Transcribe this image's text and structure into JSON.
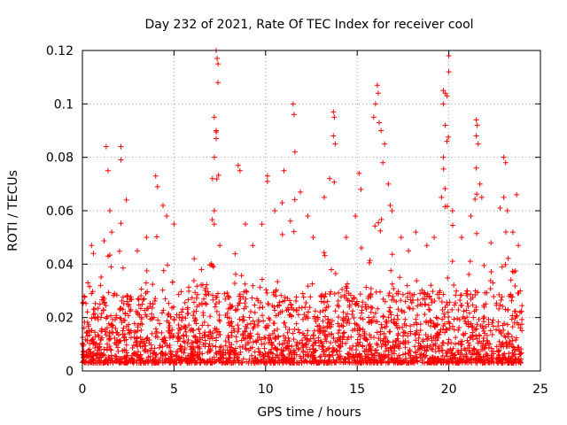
{
  "chart_data": {
    "type": "scatter",
    "title": "Day 232 of 2021, Rate Of TEC Index for receiver cool",
    "xlabel": "GPS time / hours",
    "ylabel": "ROTI / TECUs",
    "xlim": [
      0,
      25
    ],
    "ylim": [
      0,
      0.12
    ],
    "x_ticks": [
      0,
      5,
      10,
      15,
      20,
      25
    ],
    "y_ticks": [
      0,
      0.02,
      0.04,
      0.06,
      0.08,
      0.1,
      0.12
    ],
    "x_tick_labels": [
      "0",
      "5",
      "10",
      "15",
      "20",
      "25"
    ],
    "y_tick_labels": [
      "0",
      "0.02",
      "0.04",
      "0.06",
      "0.08",
      "0.1",
      "0.12"
    ],
    "grid": true,
    "marker": "+",
    "marker_color": "#ff0000",
    "series": [
      {
        "name": "ROTI",
        "baseline_range": [
          0.003,
          0.03
        ],
        "points": [
          [
            0.1,
            0.028
          ],
          [
            0.3,
            0.033
          ],
          [
            0.5,
            0.047
          ],
          [
            0.6,
            0.044
          ],
          [
            1.3,
            0.084
          ],
          [
            1.4,
            0.075
          ],
          [
            1.5,
            0.06
          ],
          [
            1.6,
            0.052
          ],
          [
            2.1,
            0.084
          ],
          [
            2.1,
            0.079
          ],
          [
            2.4,
            0.064
          ],
          [
            3.0,
            0.045
          ],
          [
            3.5,
            0.05
          ],
          [
            4.0,
            0.073
          ],
          [
            4.1,
            0.069
          ],
          [
            4.4,
            0.062
          ],
          [
            4.6,
            0.058
          ],
          [
            5.0,
            0.055
          ],
          [
            6.1,
            0.042
          ],
          [
            6.5,
            0.038
          ],
          [
            7.1,
            0.072
          ],
          [
            7.2,
            0.095
          ],
          [
            7.3,
            0.12
          ],
          [
            7.35,
            0.117
          ],
          [
            7.4,
            0.115
          ],
          [
            7.4,
            0.108
          ],
          [
            7.3,
            0.09
          ],
          [
            7.3,
            0.087
          ],
          [
            7.2,
            0.08
          ],
          [
            7.2,
            0.06
          ],
          [
            7.2,
            0.055
          ],
          [
            7.5,
            0.047
          ],
          [
            8.5,
            0.077
          ],
          [
            8.6,
            0.075
          ],
          [
            8.9,
            0.055
          ],
          [
            9.3,
            0.047
          ],
          [
            9.8,
            0.055
          ],
          [
            10.1,
            0.073
          ],
          [
            10.1,
            0.071
          ],
          [
            10.5,
            0.06
          ],
          [
            10.9,
            0.063
          ],
          [
            11.0,
            0.075
          ],
          [
            11.5,
            0.1
          ],
          [
            11.55,
            0.096
          ],
          [
            11.6,
            0.082
          ],
          [
            11.9,
            0.067
          ],
          [
            12.3,
            0.058
          ],
          [
            12.6,
            0.05
          ],
          [
            13.2,
            0.065
          ],
          [
            13.5,
            0.072
          ],
          [
            13.7,
            0.097
          ],
          [
            13.75,
            0.095
          ],
          [
            13.7,
            0.088
          ],
          [
            13.8,
            0.085
          ],
          [
            14.4,
            0.05
          ],
          [
            14.9,
            0.058
          ],
          [
            15.1,
            0.074
          ],
          [
            15.2,
            0.068
          ],
          [
            15.9,
            0.095
          ],
          [
            16.0,
            0.1
          ],
          [
            16.1,
            0.107
          ],
          [
            16.15,
            0.104
          ],
          [
            16.2,
            0.093
          ],
          [
            16.3,
            0.09
          ],
          [
            16.5,
            0.085
          ],
          [
            16.4,
            0.078
          ],
          [
            16.7,
            0.07
          ],
          [
            16.8,
            0.062
          ],
          [
            16.9,
            0.06
          ],
          [
            17.4,
            0.05
          ],
          [
            17.8,
            0.045
          ],
          [
            18.2,
            0.052
          ],
          [
            18.8,
            0.047
          ],
          [
            19.2,
            0.05
          ],
          [
            19.7,
            0.105
          ],
          [
            19.8,
            0.104
          ],
          [
            19.9,
            0.103
          ],
          [
            19.7,
            0.1
          ],
          [
            20.0,
            0.118
          ],
          [
            20.0,
            0.112
          ],
          [
            19.8,
            0.092
          ],
          [
            19.9,
            0.086
          ],
          [
            19.7,
            0.08
          ],
          [
            19.6,
            0.065
          ],
          [
            20.2,
            0.06
          ],
          [
            20.7,
            0.05
          ],
          [
            21.2,
            0.058
          ],
          [
            21.5,
            0.094
          ],
          [
            21.55,
            0.092
          ],
          [
            21.5,
            0.088
          ],
          [
            21.6,
            0.085
          ],
          [
            21.5,
            0.076
          ],
          [
            21.7,
            0.07
          ],
          [
            21.8,
            0.065
          ],
          [
            22.3,
            0.048
          ],
          [
            22.8,
            0.061
          ],
          [
            23.0,
            0.08
          ],
          [
            23.1,
            0.078
          ],
          [
            23.0,
            0.065
          ],
          [
            23.2,
            0.06
          ],
          [
            23.5,
            0.052
          ],
          [
            23.7,
            0.066
          ],
          [
            23.8,
            0.047
          ],
          [
            23.9,
            0.03
          ]
        ]
      }
    ]
  }
}
